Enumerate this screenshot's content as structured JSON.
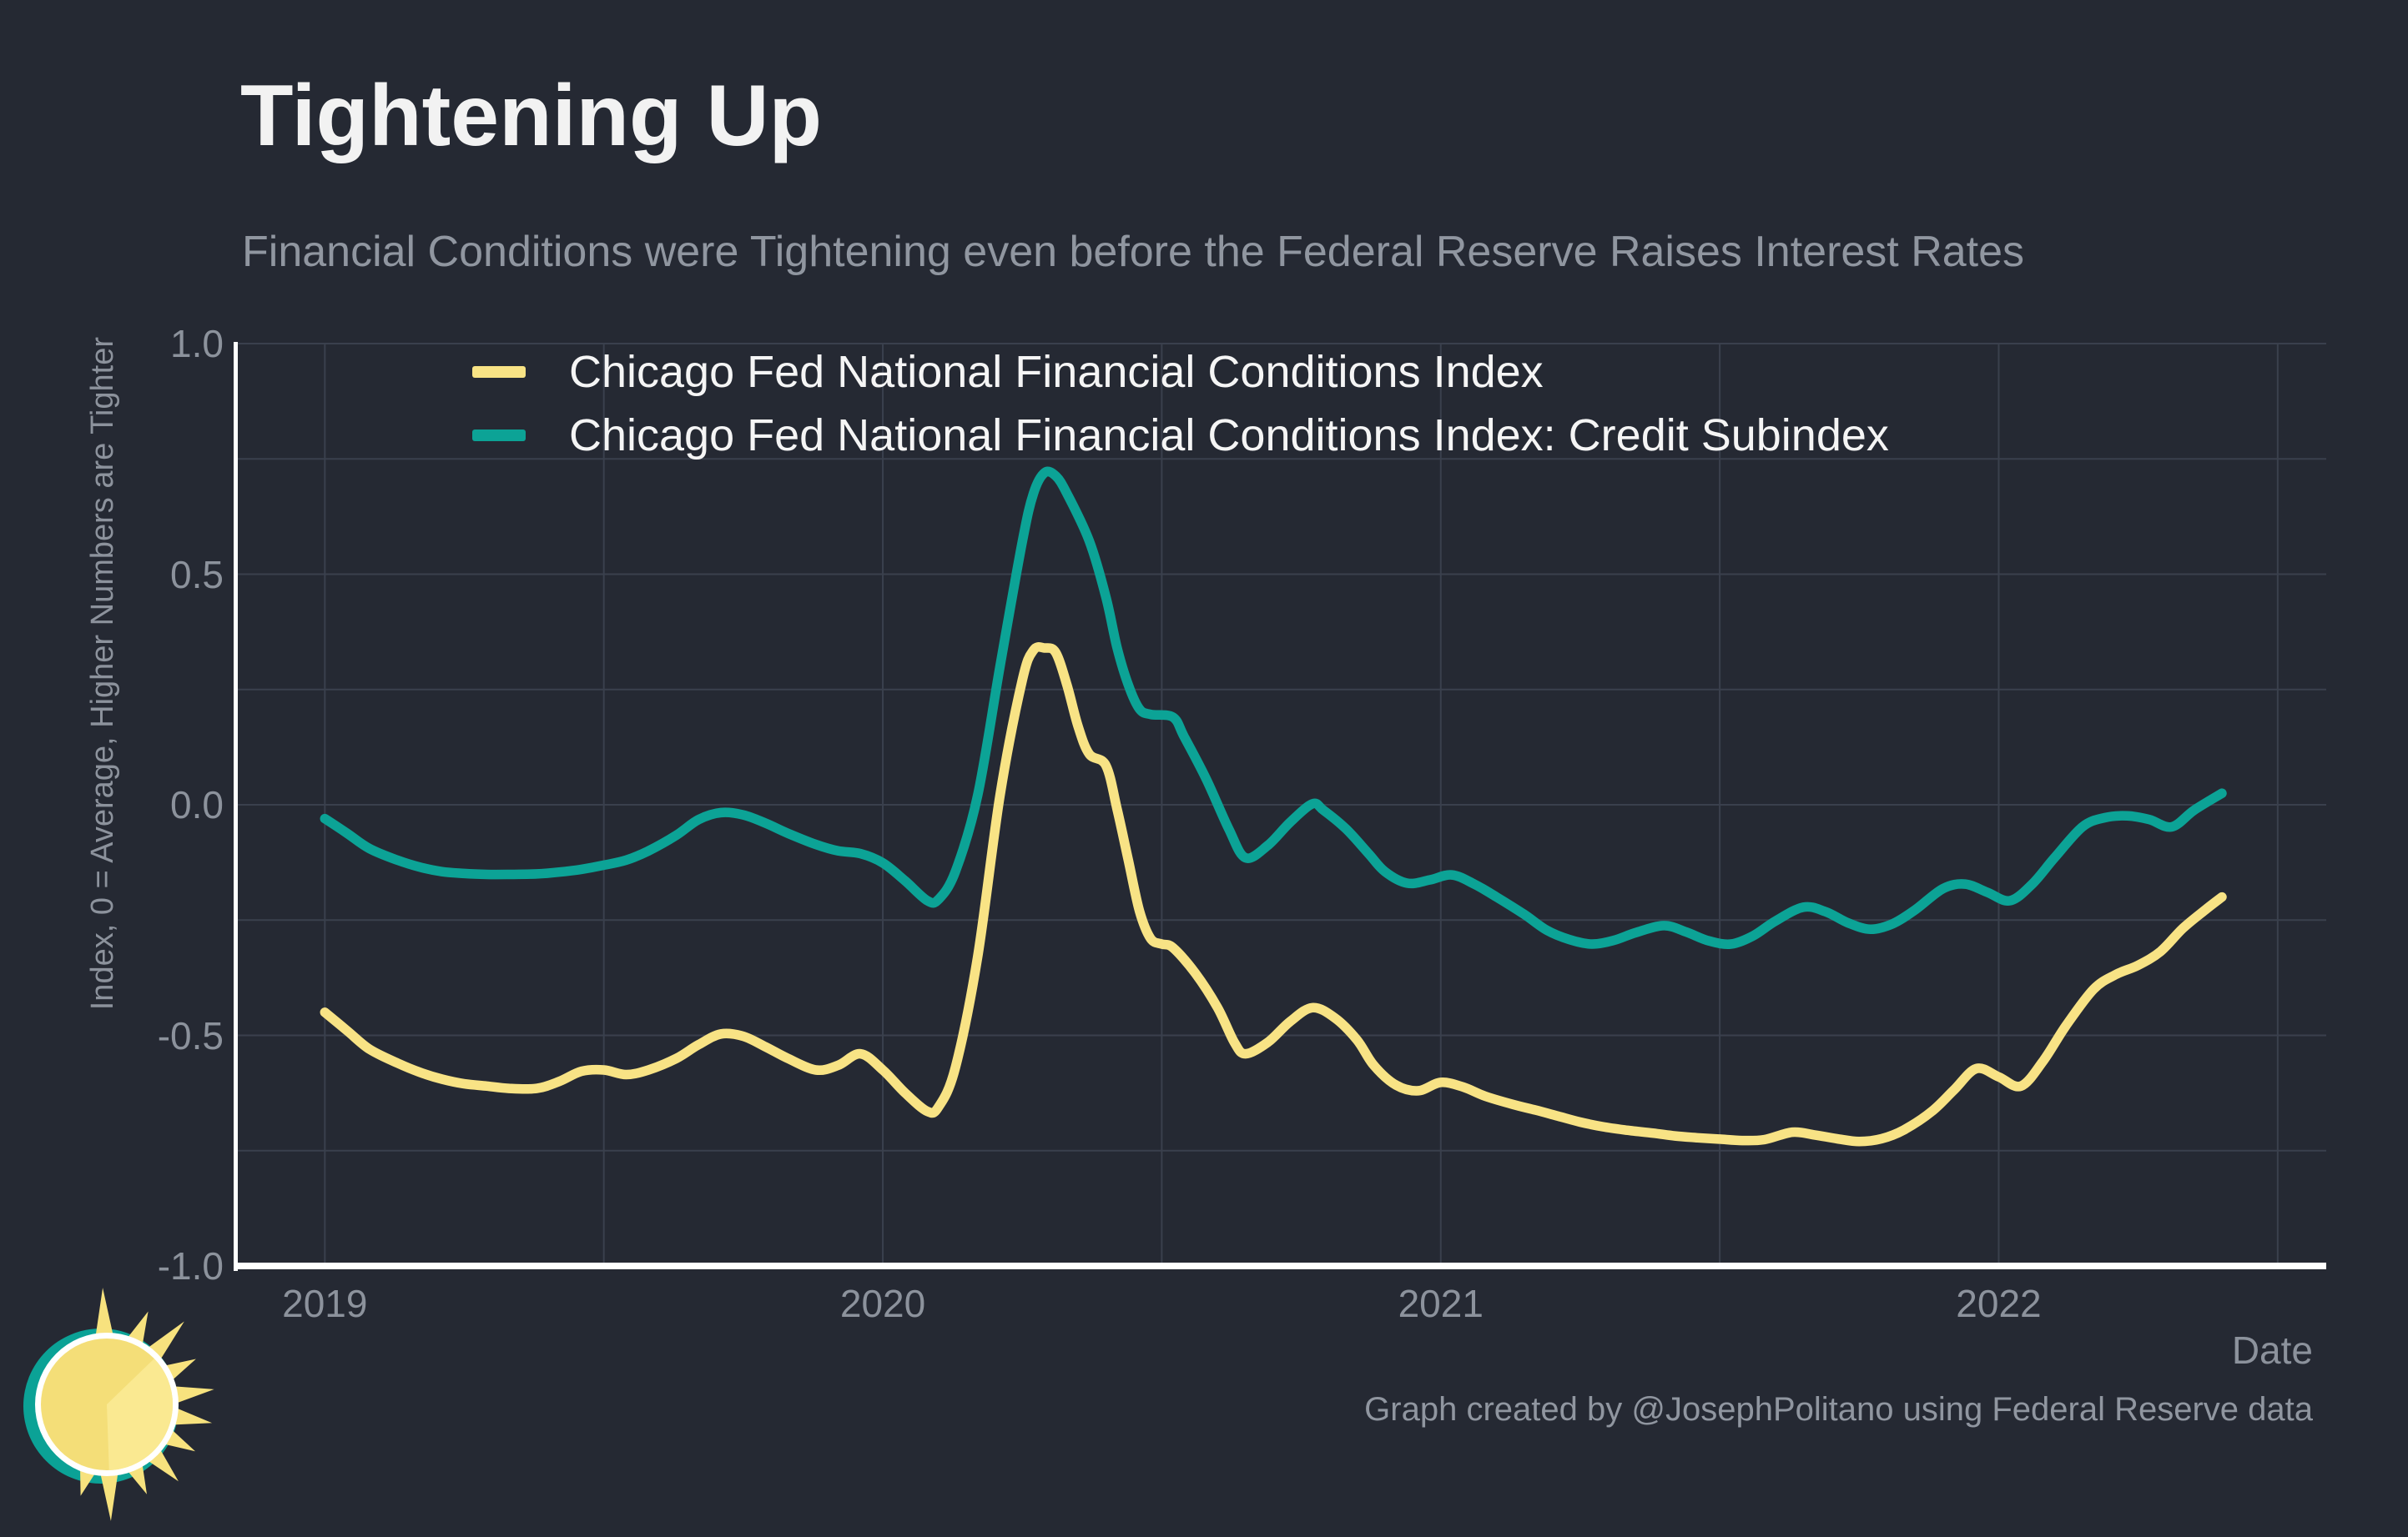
{
  "chart_data": {
    "type": "line",
    "title": "Tightening Up",
    "subtitle": "Financial Conditions were Tightening even before the Federal Reserve Raises Interest Rates",
    "xlabel": "Date",
    "ylabel": "Index, 0 = Average, Higher Numbers are Tighter",
    "xlim": [
      2018.841,
      2022.587
    ],
    "ylim": [
      -1.0,
      1.0
    ],
    "grid": {
      "show": true,
      "x_step": 0.5,
      "y_step": 0.25
    },
    "legend_position": "top-left",
    "x_ticks": [
      {
        "value": 2019,
        "label": "2019"
      },
      {
        "value": 2020,
        "label": "2020"
      },
      {
        "value": 2021,
        "label": "2021"
      },
      {
        "value": 2022,
        "label": "2022"
      }
    ],
    "y_ticks": [
      {
        "value": 1.0,
        "label": "1.0"
      },
      {
        "value": 0.5,
        "label": "0.5"
      },
      {
        "value": 0.0,
        "label": "0.0"
      },
      {
        "value": -0.5,
        "label": "-0.5"
      },
      {
        "value": -1.0,
        "label": "-1.0"
      }
    ],
    "series": [
      {
        "name": "Chicago Fed National Financial Conditions Index",
        "color": "#f8e385",
        "points": [
          [
            2019.0,
            -0.45
          ],
          [
            2019.04,
            -0.49
          ],
          [
            2019.08,
            -0.53
          ],
          [
            2019.13,
            -0.56
          ],
          [
            2019.17,
            -0.58
          ],
          [
            2019.21,
            -0.595
          ],
          [
            2019.25,
            -0.605
          ],
          [
            2019.29,
            -0.61
          ],
          [
            2019.33,
            -0.615
          ],
          [
            2019.38,
            -0.615
          ],
          [
            2019.42,
            -0.6
          ],
          [
            2019.46,
            -0.578
          ],
          [
            2019.5,
            -0.575
          ],
          [
            2019.54,
            -0.585
          ],
          [
            2019.58,
            -0.575
          ],
          [
            2019.63,
            -0.55
          ],
          [
            2019.67,
            -0.52
          ],
          [
            2019.71,
            -0.497
          ],
          [
            2019.75,
            -0.502
          ],
          [
            2019.79,
            -0.525
          ],
          [
            2019.83,
            -0.55
          ],
          [
            2019.88,
            -0.575
          ],
          [
            2019.92,
            -0.565
          ],
          [
            2019.96,
            -0.54
          ],
          [
            2020.0,
            -0.575
          ],
          [
            2020.04,
            -0.625
          ],
          [
            2020.08,
            -0.665
          ],
          [
            2020.1,
            -0.655
          ],
          [
            2020.13,
            -0.57
          ],
          [
            2020.17,
            -0.33
          ],
          [
            2020.21,
            0.02
          ],
          [
            2020.25,
            0.27
          ],
          [
            2020.27,
            0.335
          ],
          [
            2020.29,
            0.34
          ],
          [
            2020.31,
            0.33
          ],
          [
            2020.33,
            0.26
          ],
          [
            2020.35,
            0.17
          ],
          [
            2020.37,
            0.11
          ],
          [
            2020.4,
            0.085
          ],
          [
            2020.42,
            -0.01
          ],
          [
            2020.44,
            -0.12
          ],
          [
            2020.46,
            -0.23
          ],
          [
            2020.48,
            -0.29
          ],
          [
            2020.5,
            -0.302
          ],
          [
            2020.52,
            -0.31
          ],
          [
            2020.56,
            -0.365
          ],
          [
            2020.6,
            -0.44
          ],
          [
            2020.63,
            -0.515
          ],
          [
            2020.65,
            -0.54
          ],
          [
            2020.69,
            -0.515
          ],
          [
            2020.73,
            -0.47
          ],
          [
            2020.77,
            -0.44
          ],
          [
            2020.81,
            -0.462
          ],
          [
            2020.85,
            -0.51
          ],
          [
            2020.88,
            -0.565
          ],
          [
            2020.92,
            -0.608
          ],
          [
            2020.96,
            -0.62
          ],
          [
            2021.0,
            -0.602
          ],
          [
            2021.04,
            -0.612
          ],
          [
            2021.08,
            -0.632
          ],
          [
            2021.13,
            -0.65
          ],
          [
            2021.17,
            -0.662
          ],
          [
            2021.21,
            -0.675
          ],
          [
            2021.25,
            -0.688
          ],
          [
            2021.29,
            -0.698
          ],
          [
            2021.33,
            -0.705
          ],
          [
            2021.38,
            -0.712
          ],
          [
            2021.42,
            -0.718
          ],
          [
            2021.46,
            -0.722
          ],
          [
            2021.5,
            -0.725
          ],
          [
            2021.54,
            -0.728
          ],
          [
            2021.58,
            -0.726
          ],
          [
            2021.63,
            -0.71
          ],
          [
            2021.67,
            -0.716
          ],
          [
            2021.71,
            -0.724
          ],
          [
            2021.75,
            -0.73
          ],
          [
            2021.79,
            -0.724
          ],
          [
            2021.83,
            -0.705
          ],
          [
            2021.88,
            -0.665
          ],
          [
            2021.92,
            -0.618
          ],
          [
            2021.96,
            -0.572
          ],
          [
            2022.0,
            -0.59
          ],
          [
            2022.04,
            -0.61
          ],
          [
            2022.08,
            -0.555
          ],
          [
            2022.12,
            -0.48
          ],
          [
            2022.17,
            -0.4
          ],
          [
            2022.21,
            -0.368
          ],
          [
            2022.25,
            -0.348
          ],
          [
            2022.29,
            -0.318
          ],
          [
            2022.33,
            -0.268
          ],
          [
            2022.37,
            -0.228
          ],
          [
            2022.4,
            -0.2
          ]
        ]
      },
      {
        "name": "Chicago Fed National Financial Conditions Index: Credit Subindex",
        "color": "#0ca396",
        "points": [
          [
            2019.0,
            -0.03
          ],
          [
            2019.04,
            -0.062
          ],
          [
            2019.08,
            -0.095
          ],
          [
            2019.13,
            -0.12
          ],
          [
            2019.17,
            -0.135
          ],
          [
            2019.21,
            -0.145
          ],
          [
            2019.25,
            -0.149
          ],
          [
            2019.29,
            -0.151
          ],
          [
            2019.33,
            -0.151
          ],
          [
            2019.38,
            -0.15
          ],
          [
            2019.42,
            -0.146
          ],
          [
            2019.46,
            -0.14
          ],
          [
            2019.5,
            -0.131
          ],
          [
            2019.54,
            -0.12
          ],
          [
            2019.58,
            -0.1
          ],
          [
            2019.63,
            -0.066
          ],
          [
            2019.67,
            -0.032
          ],
          [
            2019.71,
            -0.017
          ],
          [
            2019.75,
            -0.022
          ],
          [
            2019.79,
            -0.04
          ],
          [
            2019.83,
            -0.062
          ],
          [
            2019.88,
            -0.086
          ],
          [
            2019.92,
            -0.1
          ],
          [
            2019.96,
            -0.106
          ],
          [
            2020.0,
            -0.126
          ],
          [
            2020.04,
            -0.165
          ],
          [
            2020.08,
            -0.208
          ],
          [
            2020.1,
            -0.205
          ],
          [
            2020.13,
            -0.145
          ],
          [
            2020.17,
            0.02
          ],
          [
            2020.21,
            0.3
          ],
          [
            2020.25,
            0.57
          ],
          [
            2020.27,
            0.675
          ],
          [
            2020.29,
            0.72
          ],
          [
            2020.31,
            0.713
          ],
          [
            2020.33,
            0.675
          ],
          [
            2020.37,
            0.572
          ],
          [
            2020.4,
            0.45
          ],
          [
            2020.42,
            0.34
          ],
          [
            2020.44,
            0.26
          ],
          [
            2020.46,
            0.208
          ],
          [
            2020.48,
            0.196
          ],
          [
            2020.52,
            0.19
          ],
          [
            2020.54,
            0.148
          ],
          [
            2020.58,
            0.055
          ],
          [
            2020.62,
            -0.052
          ],
          [
            2020.65,
            -0.115
          ],
          [
            2020.69,
            -0.088
          ],
          [
            2020.73,
            -0.038
          ],
          [
            2020.77,
            0.002
          ],
          [
            2020.79,
            -0.012
          ],
          [
            2020.83,
            -0.052
          ],
          [
            2020.87,
            -0.105
          ],
          [
            2020.9,
            -0.145
          ],
          [
            2020.94,
            -0.17
          ],
          [
            2020.98,
            -0.163
          ],
          [
            2021.02,
            -0.152
          ],
          [
            2021.06,
            -0.172
          ],
          [
            2021.1,
            -0.2
          ],
          [
            2021.15,
            -0.238
          ],
          [
            2021.19,
            -0.272
          ],
          [
            2021.23,
            -0.292
          ],
          [
            2021.27,
            -0.302
          ],
          [
            2021.31,
            -0.294
          ],
          [
            2021.35,
            -0.277
          ],
          [
            2021.4,
            -0.262
          ],
          [
            2021.44,
            -0.276
          ],
          [
            2021.48,
            -0.295
          ],
          [
            2021.52,
            -0.302
          ],
          [
            2021.56,
            -0.284
          ],
          [
            2021.6,
            -0.252
          ],
          [
            2021.65,
            -0.222
          ],
          [
            2021.69,
            -0.232
          ],
          [
            2021.73,
            -0.256
          ],
          [
            2021.77,
            -0.27
          ],
          [
            2021.81,
            -0.258
          ],
          [
            2021.85,
            -0.228
          ],
          [
            2021.9,
            -0.182
          ],
          [
            2021.94,
            -0.172
          ],
          [
            2021.98,
            -0.19
          ],
          [
            2022.02,
            -0.208
          ],
          [
            2022.06,
            -0.172
          ],
          [
            2022.1,
            -0.115
          ],
          [
            2022.15,
            -0.048
          ],
          [
            2022.19,
            -0.028
          ],
          [
            2022.23,
            -0.024
          ],
          [
            2022.27,
            -0.032
          ],
          [
            2022.31,
            -0.048
          ],
          [
            2022.35,
            -0.012
          ],
          [
            2022.4,
            0.025
          ]
        ]
      }
    ]
  },
  "footer": {
    "credit": "Graph created by @JosephPolitano using Federal Reserve data"
  },
  "logo": {
    "icon": "sun-icon",
    "colors": {
      "rays": "#f7e27e",
      "disc": "#f4de78",
      "disc_light": "#fae991",
      "ring": "#ffffff",
      "back": "#0ba296"
    }
  },
  "colors": {
    "background": "#252933",
    "grid": "#3a404d",
    "spine": "#ffffff",
    "title_text": "#f2f2f2",
    "legend_text": "#f5f5f5",
    "muted_text": "#9096a0",
    "tick_text": "#8c929c",
    "series_nfci": "#f8e385",
    "series_credit": "#0ca396"
  }
}
